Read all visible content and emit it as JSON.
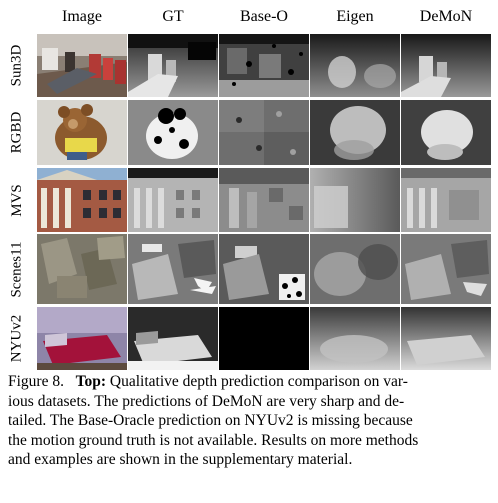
{
  "figure": {
    "columns": [
      "Image",
      "GT",
      "Base-O",
      "Eigen",
      "DeMoN"
    ],
    "rows": [
      "Sun3D",
      "RGBD",
      "MVS",
      "Scenes11",
      "NYUv2"
    ]
  },
  "caption": {
    "prefix": "Figure 8.",
    "bold": "Top:",
    "line1_rest": " Qualitative depth prediction comparison on var-",
    "line2": "ious datasets. The predictions of DeMoN are very sharp and de-",
    "line3": "tailed. The Base-Oracle prediction on NYUv2 is missing because",
    "line4": "the motion ground truth is not available. Results on more methods",
    "line5": "and examples are shown in the supplementary material."
  }
}
